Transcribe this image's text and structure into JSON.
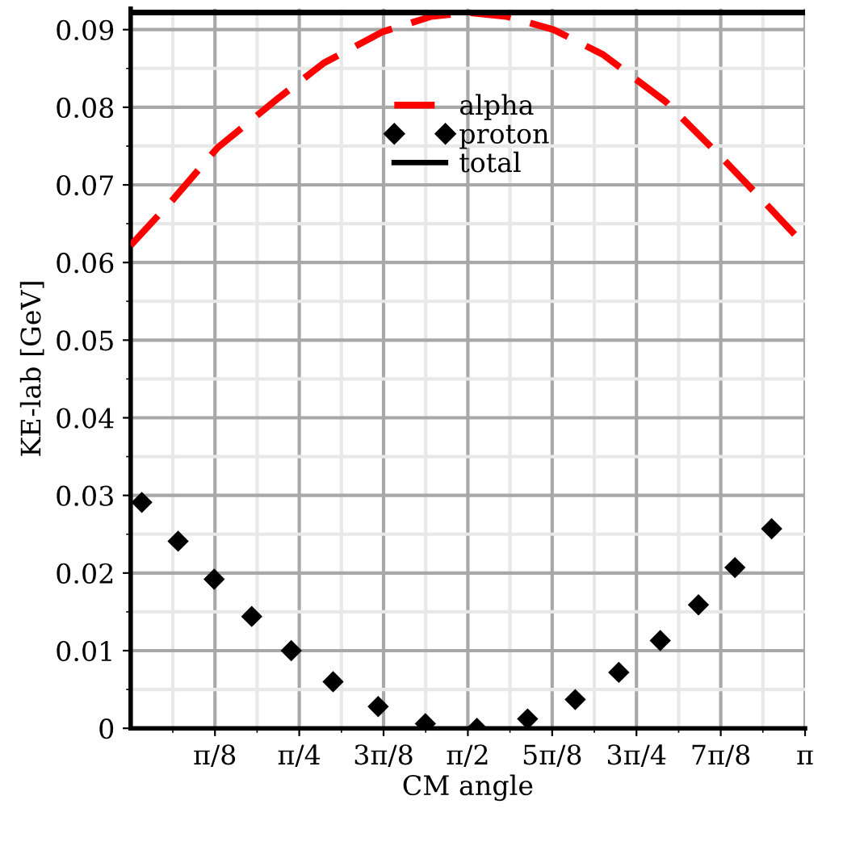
{
  "chart_data": {
    "type": "line",
    "xlabel": "CM angle",
    "ylabel": "KE-lab [GeV]",
    "xlim": [
      0,
      3.1416
    ],
    "ylim": [
      0,
      0.0927
    ],
    "xticks": [
      {
        "value": 0.3927,
        "label": "π/8"
      },
      {
        "value": 0.7854,
        "label": "π/4"
      },
      {
        "value": 1.1781,
        "label": "3π/8"
      },
      {
        "value": 1.5708,
        "label": "π/2"
      },
      {
        "value": 1.9635,
        "label": "5π/8"
      },
      {
        "value": 2.3562,
        "label": "3π/4"
      },
      {
        "value": 2.7489,
        "label": "7π/8"
      },
      {
        "value": 3.1416,
        "label": "π"
      }
    ],
    "yticks": [
      0,
      0.01,
      0.02,
      0.03,
      0.04,
      0.05,
      0.06,
      0.07,
      0.08,
      0.09
    ],
    "grid": true,
    "legend": "top",
    "series": [
      {
        "name": "alpha",
        "color": "#ff0000",
        "line_style": "dashed",
        "marker": "none",
        "x": [
          0,
          0.2,
          0.405,
          0.689,
          0.9,
          1.172,
          1.4,
          1.571,
          1.75,
          1.97,
          2.2,
          2.493,
          2.75,
          2.941,
          3.1416
        ],
        "values": [
          0.0622,
          0.0682,
          0.0748,
          0.0812,
          0.0857,
          0.0897,
          0.0917,
          0.0922,
          0.0917,
          0.09,
          0.0868,
          0.0807,
          0.0736,
          0.0681,
          0.0622
        ]
      },
      {
        "name": "proton",
        "type": "scatter",
        "color": "#000000",
        "marker": "diamond",
        "x": [
          0.052,
          0.221,
          0.389,
          0.564,
          0.748,
          0.943,
          1.153,
          1.373,
          1.613,
          1.849,
          2.071,
          2.274,
          2.467,
          2.645,
          2.815,
          2.986
        ],
        "values": [
          0.0291,
          0.0241,
          0.0192,
          0.0144,
          0.01,
          0.006,
          0.0028,
          0.0006,
          0.0,
          0.0012,
          0.0037,
          0.0072,
          0.0113,
          0.0159,
          0.0207,
          0.0257
        ]
      },
      {
        "name": "total",
        "color": "#000000",
        "line_style": "solid",
        "marker": "none",
        "x": [
          0,
          3.1416
        ],
        "values": [
          0.0922,
          0.0922
        ]
      }
    ]
  }
}
